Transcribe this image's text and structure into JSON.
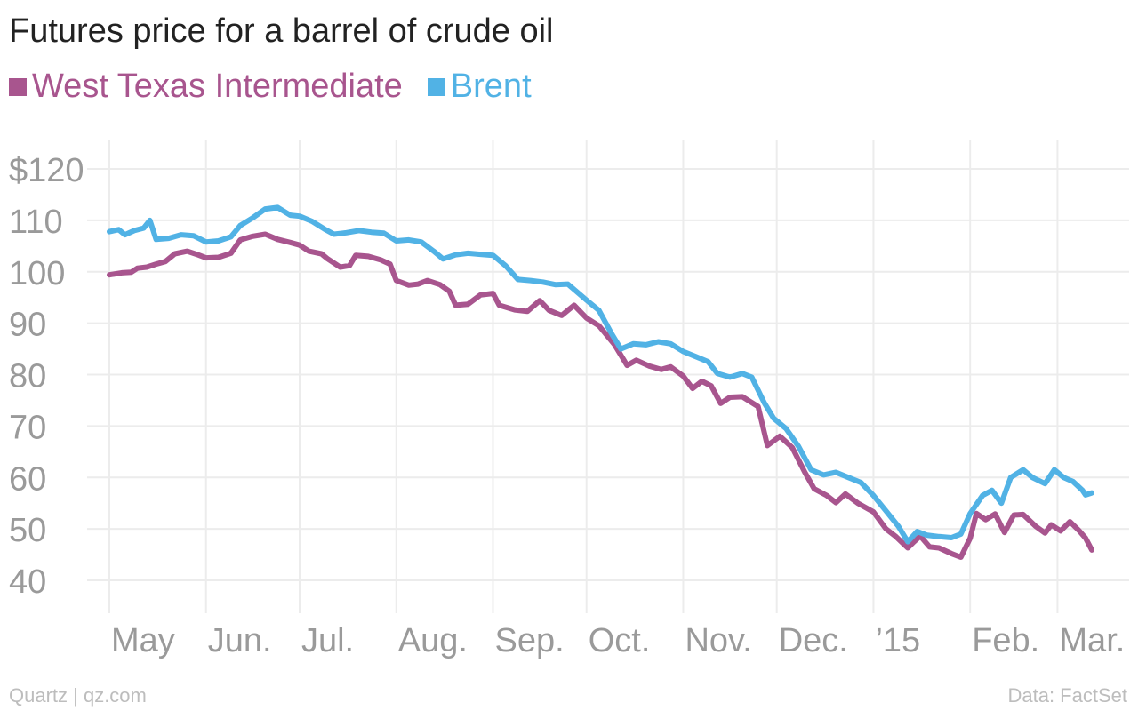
{
  "colors": {
    "wti": "#a8558e",
    "brent": "#51b2e5",
    "grid": "#ececec",
    "tick": "#9a9a9a"
  },
  "footer": {
    "source_left": "Quartz | qz.com",
    "source_right": "Data: FactSet"
  },
  "chart_data": {
    "type": "line",
    "title": "Futures price for a barrel of crude oil",
    "xlabel": "",
    "ylabel": "",
    "ylim": [
      35,
      125
    ],
    "yticks": [
      40,
      50,
      60,
      70,
      80,
      90,
      100,
      110,
      120
    ],
    "ytick_labels": [
      "40",
      "50",
      "60",
      "70",
      "80",
      "90",
      "100",
      "110",
      "$120"
    ],
    "grid": true,
    "legend": "top-left",
    "x_range": [
      "2014-05-01",
      "2015-03-12"
    ],
    "xticks": [
      {
        "date": "2014-05-01",
        "label": "May"
      },
      {
        "date": "2014-06-01",
        "label": "Jun."
      },
      {
        "date": "2014-07-01",
        "label": "Jul."
      },
      {
        "date": "2014-08-01",
        "label": "Aug."
      },
      {
        "date": "2014-09-01",
        "label": "Sep."
      },
      {
        "date": "2014-10-01",
        "label": "Oct."
      },
      {
        "date": "2014-11-01",
        "label": "Nov."
      },
      {
        "date": "2014-12-01",
        "label": "Dec."
      },
      {
        "date": "2015-01-01",
        "label": "’15"
      },
      {
        "date": "2015-02-01",
        "label": "Feb."
      },
      {
        "date": "2015-03-01",
        "label": "Mar."
      }
    ],
    "series": [
      {
        "name": "West Texas Intermediate",
        "key": "wti",
        "points": [
          [
            "2014-05-01",
            99.4
          ],
          [
            "2014-05-05",
            99.8
          ],
          [
            "2014-05-08",
            99.9
          ],
          [
            "2014-05-10",
            100.7
          ],
          [
            "2014-05-13",
            100.9
          ],
          [
            "2014-05-16",
            101.5
          ],
          [
            "2014-05-19",
            102.0
          ],
          [
            "2014-05-22",
            103.5
          ],
          [
            "2014-05-26",
            104.0
          ],
          [
            "2014-05-29",
            103.4
          ],
          [
            "2014-06-01",
            102.7
          ],
          [
            "2014-06-05",
            102.8
          ],
          [
            "2014-06-09",
            103.6
          ],
          [
            "2014-06-12",
            106.2
          ],
          [
            "2014-06-16",
            106.9
          ],
          [
            "2014-06-20",
            107.3
          ],
          [
            "2014-06-24",
            106.3
          ],
          [
            "2014-06-28",
            105.7
          ],
          [
            "2014-07-01",
            105.2
          ],
          [
            "2014-07-04",
            104.0
          ],
          [
            "2014-07-08",
            103.5
          ],
          [
            "2014-07-10",
            102.5
          ],
          [
            "2014-07-14",
            100.9
          ],
          [
            "2014-07-17",
            101.2
          ],
          [
            "2014-07-19",
            103.2
          ],
          [
            "2014-07-23",
            103.0
          ],
          [
            "2014-07-27",
            102.3
          ],
          [
            "2014-07-30",
            101.5
          ],
          [
            "2014-08-01",
            98.3
          ],
          [
            "2014-08-05",
            97.4
          ],
          [
            "2014-08-08",
            97.6
          ],
          [
            "2014-08-11",
            98.3
          ],
          [
            "2014-08-15",
            97.5
          ],
          [
            "2014-08-18",
            96.2
          ],
          [
            "2014-08-20",
            93.5
          ],
          [
            "2014-08-24",
            93.7
          ],
          [
            "2014-08-28",
            95.5
          ],
          [
            "2014-09-01",
            95.8
          ],
          [
            "2014-09-03",
            93.5
          ],
          [
            "2014-09-08",
            92.6
          ],
          [
            "2014-09-12",
            92.3
          ],
          [
            "2014-09-16",
            94.4
          ],
          [
            "2014-09-19",
            92.5
          ],
          [
            "2014-09-23",
            91.5
          ],
          [
            "2014-09-27",
            93.5
          ],
          [
            "2014-10-01",
            91.0
          ],
          [
            "2014-10-05",
            89.5
          ],
          [
            "2014-10-08",
            87.3
          ],
          [
            "2014-10-10",
            85.8
          ],
          [
            "2014-10-14",
            81.8
          ],
          [
            "2014-10-17",
            82.8
          ],
          [
            "2014-10-21",
            81.7
          ],
          [
            "2014-10-25",
            81.0
          ],
          [
            "2014-10-28",
            81.5
          ],
          [
            "2014-11-01",
            79.7
          ],
          [
            "2014-11-04",
            77.3
          ],
          [
            "2014-11-07",
            78.7
          ],
          [
            "2014-11-10",
            77.8
          ],
          [
            "2014-11-13",
            74.4
          ],
          [
            "2014-11-16",
            75.6
          ],
          [
            "2014-11-20",
            75.7
          ],
          [
            "2014-11-25",
            73.8
          ],
          [
            "2014-11-28",
            66.2
          ],
          [
            "2014-12-02",
            68.0
          ],
          [
            "2014-12-06",
            65.8
          ],
          [
            "2014-12-10",
            61.0
          ],
          [
            "2014-12-13",
            57.8
          ],
          [
            "2014-12-17",
            56.5
          ],
          [
            "2014-12-20",
            55.1
          ],
          [
            "2014-12-23",
            56.8
          ],
          [
            "2014-12-27",
            55.0
          ],
          [
            "2015-01-01",
            53.3
          ],
          [
            "2015-01-05",
            50.0
          ],
          [
            "2015-01-08",
            48.6
          ],
          [
            "2015-01-12",
            46.3
          ],
          [
            "2015-01-14",
            47.5
          ],
          [
            "2015-01-16",
            48.6
          ],
          [
            "2015-01-19",
            46.5
          ],
          [
            "2015-01-22",
            46.3
          ],
          [
            "2015-01-26",
            45.2
          ],
          [
            "2015-01-29",
            44.5
          ],
          [
            "2015-02-01",
            48.2
          ],
          [
            "2015-02-03",
            53.0
          ],
          [
            "2015-02-06",
            51.8
          ],
          [
            "2015-02-09",
            52.9
          ],
          [
            "2015-02-12",
            49.3
          ],
          [
            "2015-02-15",
            52.7
          ],
          [
            "2015-02-18",
            52.8
          ],
          [
            "2015-02-22",
            50.5
          ],
          [
            "2015-02-25",
            49.2
          ],
          [
            "2015-02-27",
            50.8
          ],
          [
            "2015-03-02",
            49.6
          ],
          [
            "2015-03-05",
            51.4
          ],
          [
            "2015-03-08",
            49.6
          ],
          [
            "2015-03-10",
            48.2
          ],
          [
            "2015-03-12",
            45.9
          ]
        ]
      },
      {
        "name": "Brent",
        "key": "brent",
        "points": [
          [
            "2014-05-01",
            107.8
          ],
          [
            "2014-05-04",
            108.2
          ],
          [
            "2014-05-06",
            107.2
          ],
          [
            "2014-05-09",
            108.0
          ],
          [
            "2014-05-12",
            108.5
          ],
          [
            "2014-05-14",
            110.0
          ],
          [
            "2014-05-16",
            106.3
          ],
          [
            "2014-05-20",
            106.5
          ],
          [
            "2014-05-24",
            107.2
          ],
          [
            "2014-05-28",
            107.0
          ],
          [
            "2014-06-01",
            105.8
          ],
          [
            "2014-06-05",
            106.0
          ],
          [
            "2014-06-09",
            106.8
          ],
          [
            "2014-06-12",
            109.0
          ],
          [
            "2014-06-16",
            110.5
          ],
          [
            "2014-06-20",
            112.2
          ],
          [
            "2014-06-24",
            112.5
          ],
          [
            "2014-06-28",
            111.0
          ],
          [
            "2014-07-01",
            110.8
          ],
          [
            "2014-07-05",
            109.8
          ],
          [
            "2014-07-09",
            108.3
          ],
          [
            "2014-07-12",
            107.3
          ],
          [
            "2014-07-16",
            107.6
          ],
          [
            "2014-07-20",
            108.0
          ],
          [
            "2014-07-24",
            107.7
          ],
          [
            "2014-07-28",
            107.5
          ],
          [
            "2014-08-01",
            106.0
          ],
          [
            "2014-08-05",
            106.2
          ],
          [
            "2014-08-09",
            105.8
          ],
          [
            "2014-08-13",
            104.0
          ],
          [
            "2014-08-16",
            102.5
          ],
          [
            "2014-08-20",
            103.3
          ],
          [
            "2014-08-24",
            103.6
          ],
          [
            "2014-08-28",
            103.4
          ],
          [
            "2014-09-01",
            103.2
          ],
          [
            "2014-09-05",
            101.2
          ],
          [
            "2014-09-09",
            98.5
          ],
          [
            "2014-09-13",
            98.3
          ],
          [
            "2014-09-17",
            98.0
          ],
          [
            "2014-09-21",
            97.5
          ],
          [
            "2014-09-25",
            97.6
          ],
          [
            "2014-10-01",
            94.5
          ],
          [
            "2014-10-05",
            92.5
          ],
          [
            "2014-10-09",
            88.0
          ],
          [
            "2014-10-12",
            85.0
          ],
          [
            "2014-10-16",
            86.0
          ],
          [
            "2014-10-20",
            85.8
          ],
          [
            "2014-10-24",
            86.4
          ],
          [
            "2014-10-28",
            86.0
          ],
          [
            "2014-11-01",
            84.5
          ],
          [
            "2014-11-05",
            83.5
          ],
          [
            "2014-11-09",
            82.5
          ],
          [
            "2014-11-12",
            80.2
          ],
          [
            "2014-11-16",
            79.5
          ],
          [
            "2014-11-20",
            80.2
          ],
          [
            "2014-11-23",
            79.5
          ],
          [
            "2014-11-27",
            74.5
          ],
          [
            "2014-11-30",
            71.5
          ],
          [
            "2014-12-04",
            69.5
          ],
          [
            "2014-12-08",
            66.0
          ],
          [
            "2014-12-12",
            61.5
          ],
          [
            "2014-12-16",
            60.5
          ],
          [
            "2014-12-20",
            61.0
          ],
          [
            "2014-12-24",
            60.0
          ],
          [
            "2014-12-28",
            59.0
          ],
          [
            "2015-01-01",
            56.5
          ],
          [
            "2015-01-05",
            53.5
          ],
          [
            "2015-01-09",
            50.5
          ],
          [
            "2015-01-12",
            47.5
          ],
          [
            "2015-01-15",
            49.5
          ],
          [
            "2015-01-18",
            48.8
          ],
          [
            "2015-01-22",
            48.5
          ],
          [
            "2015-01-26",
            48.3
          ],
          [
            "2015-01-29",
            49.0
          ],
          [
            "2015-02-01",
            53.0
          ],
          [
            "2015-02-05",
            56.5
          ],
          [
            "2015-02-08",
            57.5
          ],
          [
            "2015-02-11",
            55.0
          ],
          [
            "2015-02-14",
            60.0
          ],
          [
            "2015-02-18",
            61.5
          ],
          [
            "2015-02-21",
            60.0
          ],
          [
            "2015-02-25",
            58.8
          ],
          [
            "2015-02-28",
            61.5
          ],
          [
            "2015-03-03",
            60.0
          ],
          [
            "2015-03-06",
            59.2
          ],
          [
            "2015-03-09",
            57.5
          ],
          [
            "2015-03-10",
            56.6
          ],
          [
            "2015-03-12",
            57.0
          ]
        ]
      }
    ]
  }
}
